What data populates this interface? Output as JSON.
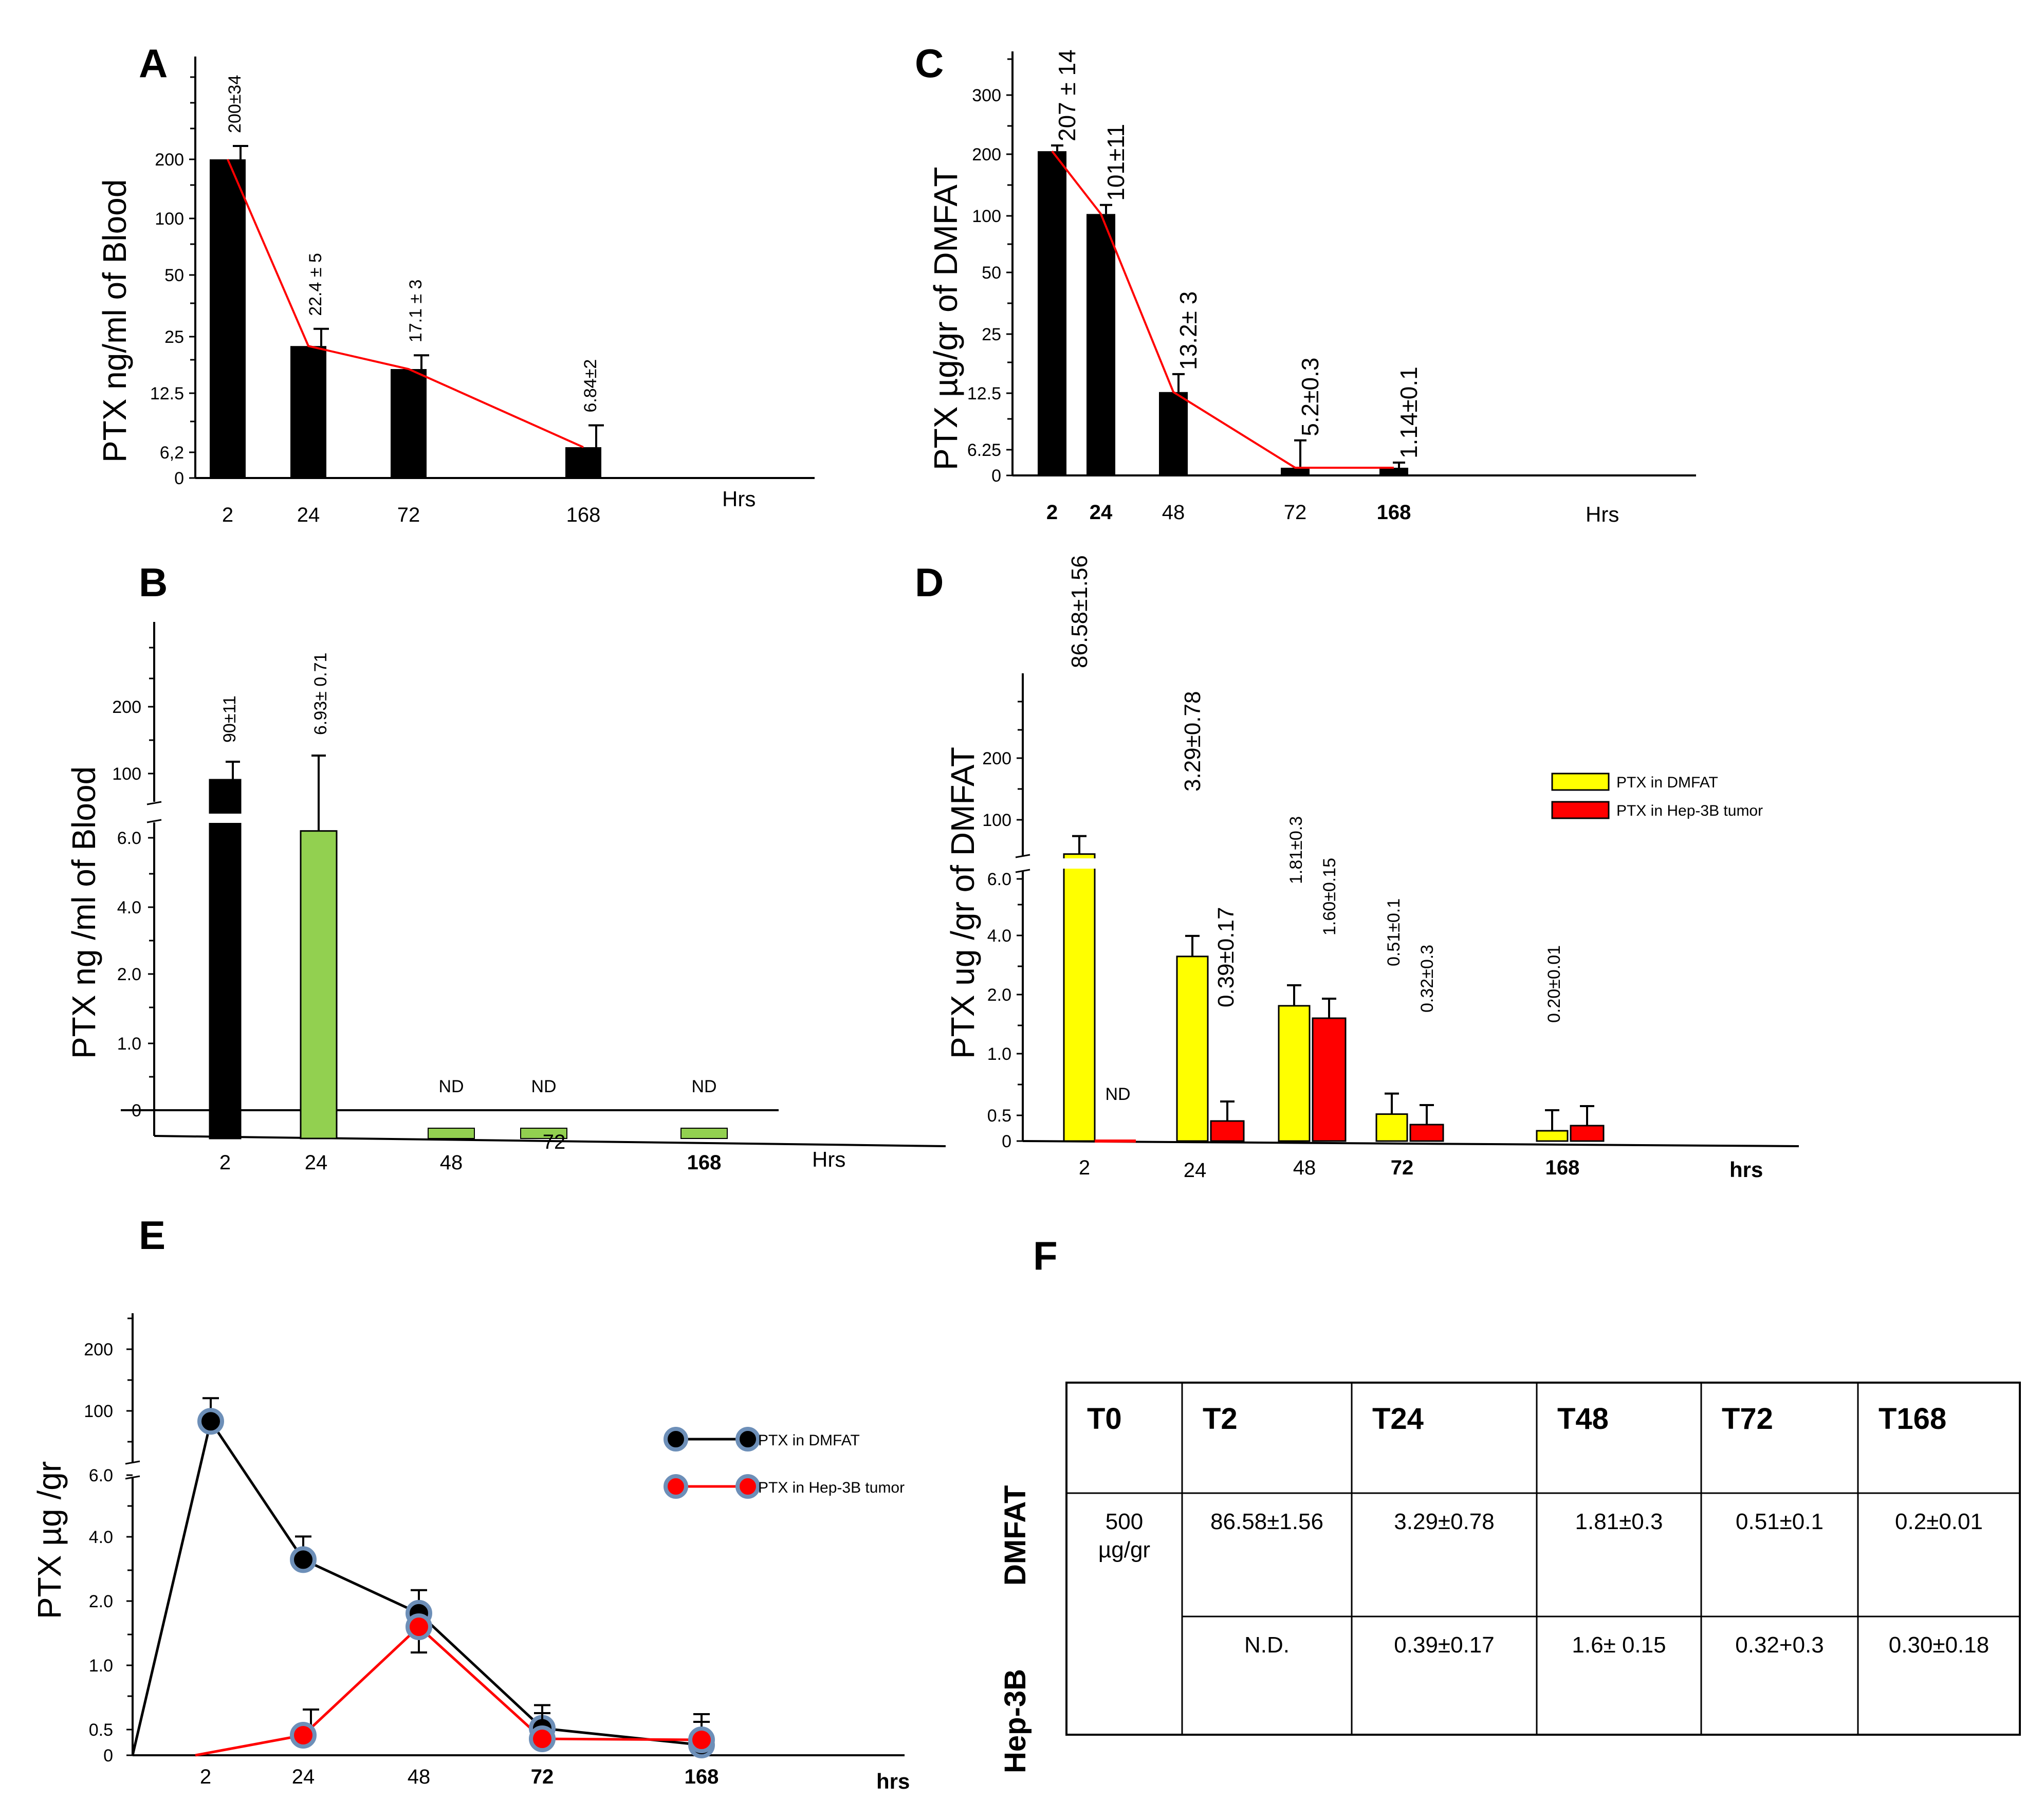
{
  "panelA": {
    "letter": "A",
    "ylabel": "PTX ng/ml of  Blood",
    "xlabel": "Hrs",
    "yticks": [
      "0",
      "6,2",
      "12.5",
      "25",
      "50",
      "100",
      "200"
    ],
    "chart_data": {
      "type": "bar",
      "categories": [
        "2",
        "24",
        "72",
        "168"
      ],
      "values": [
        200,
        22.4,
        17.1,
        6.84
      ],
      "errors": [
        34,
        5,
        3,
        2
      ],
      "labels": [
        "200±34",
        "22.4 ± 5",
        "17.1 ± 3",
        "6.84±2"
      ],
      "yscale": "log2",
      "trend_line": true
    }
  },
  "panelB": {
    "letter": "B",
    "ylabel": "PTX ng /ml of   Blood",
    "xlabel": "Hrs",
    "yticks": [
      "0",
      "1.0",
      "2.0",
      "4.0",
      "6.0",
      "100",
      "200"
    ],
    "chart_data": {
      "type": "bar",
      "categories": [
        "2",
        "24",
        "48",
        "72",
        "168"
      ],
      "values": [
        90,
        6.93,
        0,
        0,
        0
      ],
      "errors": [
        11,
        0.71,
        null,
        null,
        null
      ],
      "labels": [
        "90±11",
        "6.93± 0.71",
        "ND",
        "ND",
        "ND"
      ],
      "colors": [
        "#000000",
        "#92d050",
        "#92d050",
        "#92d050",
        "#92d050"
      ],
      "axis_break": true
    }
  },
  "panelC": {
    "letter": "C",
    "ylabel": "PTX µg/gr  of DMFAT",
    "xlabel": "Hrs",
    "yticks": [
      "0",
      "6.25",
      "12.5",
      "25",
      "50",
      "100",
      "200",
      "300"
    ],
    "chart_data": {
      "type": "bar",
      "categories": [
        "2",
        "24",
        "48",
        "72",
        "168"
      ],
      "values": [
        207,
        101,
        13.2,
        5.2,
        1.14
      ],
      "errors": [
        14,
        11,
        3,
        0.3,
        0.1
      ],
      "labels": [
        "207 ± 14",
        "101±11",
        "13.2± 3",
        "5.2±0.3",
        "1.14±0.1"
      ],
      "yscale": "log2",
      "trend_line": true
    }
  },
  "panelD": {
    "letter": "D",
    "ylabel": "PTX ug /gr  of DMFAT",
    "xlabel": "hrs",
    "yticks": [
      "0",
      "0.5",
      "1.0",
      "2.0",
      "4.0",
      "6.0",
      "100",
      "200"
    ],
    "legend": [
      "PTX in DMFAT",
      "PTX in Hep-3B tumor"
    ],
    "chart_data": {
      "type": "bar",
      "categories": [
        "2",
        "24",
        "48",
        "72",
        "168"
      ],
      "series": [
        {
          "name": "PTX in DMFAT",
          "color": "#ffff00",
          "values": [
            86.58,
            3.29,
            1.81,
            0.51,
            0.2
          ],
          "labels": [
            "86.58±1.56",
            "3.29±0.78",
            "1.81±0.3",
            "0.51±0.1",
            "0.20±0.01"
          ]
        },
        {
          "name": "PTX in Hep-3B tumor",
          "color": "#ff0000",
          "values": [
            0,
            0.39,
            1.6,
            0.32,
            0.3
          ],
          "labels": [
            "ND",
            "0.39±0.17",
            "1.60±0.15",
            "0.32±0.3",
            ""
          ]
        }
      ],
      "axis_break": true
    }
  },
  "panelE": {
    "letter": "E",
    "ylabel": "PTX µg /gr",
    "xlabel": "hrs",
    "yticks": [
      "0",
      "0.5",
      "1.0",
      "2.0",
      "4.0",
      "6.0",
      "100",
      "200"
    ],
    "legend": [
      "PTX in DMFAT",
      "PTX in Hep-3B tumor"
    ],
    "chart_data": {
      "type": "line",
      "x": [
        "2",
        "24",
        "48",
        "72",
        "168"
      ],
      "series": [
        {
          "name": "PTX in DMFAT",
          "color": "#000000",
          "values": [
            86.58,
            3.29,
            1.81,
            0.51,
            0.2
          ]
        },
        {
          "name": "PTX in Hep-3B tumor",
          "color": "#ff0000",
          "values": [
            0,
            0.39,
            1.6,
            0.32,
            0.3
          ]
        }
      ],
      "axis_break": true
    }
  },
  "panelF": {
    "letter": "F",
    "chart_data": {
      "type": "table",
      "headers": [
        "T0",
        "T2",
        "T24",
        "T48",
        "T72",
        "T168"
      ],
      "t0": [
        "500",
        "µg/gr"
      ],
      "rows": [
        {
          "name": "DMFAT",
          "values": [
            "86.58±1.56",
            "3.29±0.78",
            "1.81±0.3",
            "0.51±0.1",
            "0.2±0.01"
          ]
        },
        {
          "name": "Hep-3B",
          "values": [
            "N.D.",
            "0.39±0.17",
            "1.6± 0.15",
            "0.32+0.3",
            "0.30±0.18"
          ]
        }
      ]
    }
  }
}
